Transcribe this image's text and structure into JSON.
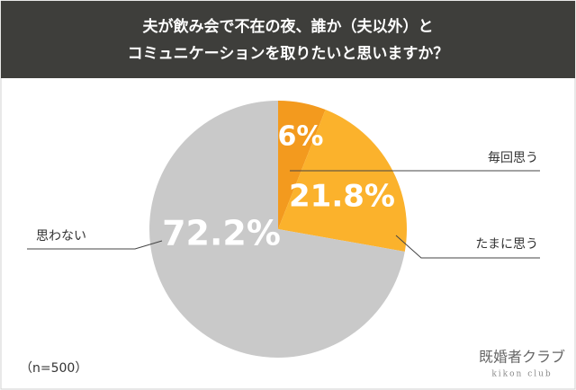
{
  "chart_data": {
    "type": "pie",
    "title": [
      "夫が飲み会で不在の夜、誰か（夫以外）と",
      "コミュニケーションを取りたいと思いますか？"
    ],
    "categories": [
      "毎回思う",
      "たまに思う",
      "思わない"
    ],
    "values": [
      6,
      21.8,
      72.2
    ],
    "value_labels": [
      "6%",
      "21.8%",
      "72.2%"
    ],
    "colors": [
      "#f39a1e",
      "#fbb22c",
      "#c9c9c9"
    ],
    "note": "（n=500）",
    "logo": "既婚者クラブ",
    "logo_sub": "kikon club"
  }
}
